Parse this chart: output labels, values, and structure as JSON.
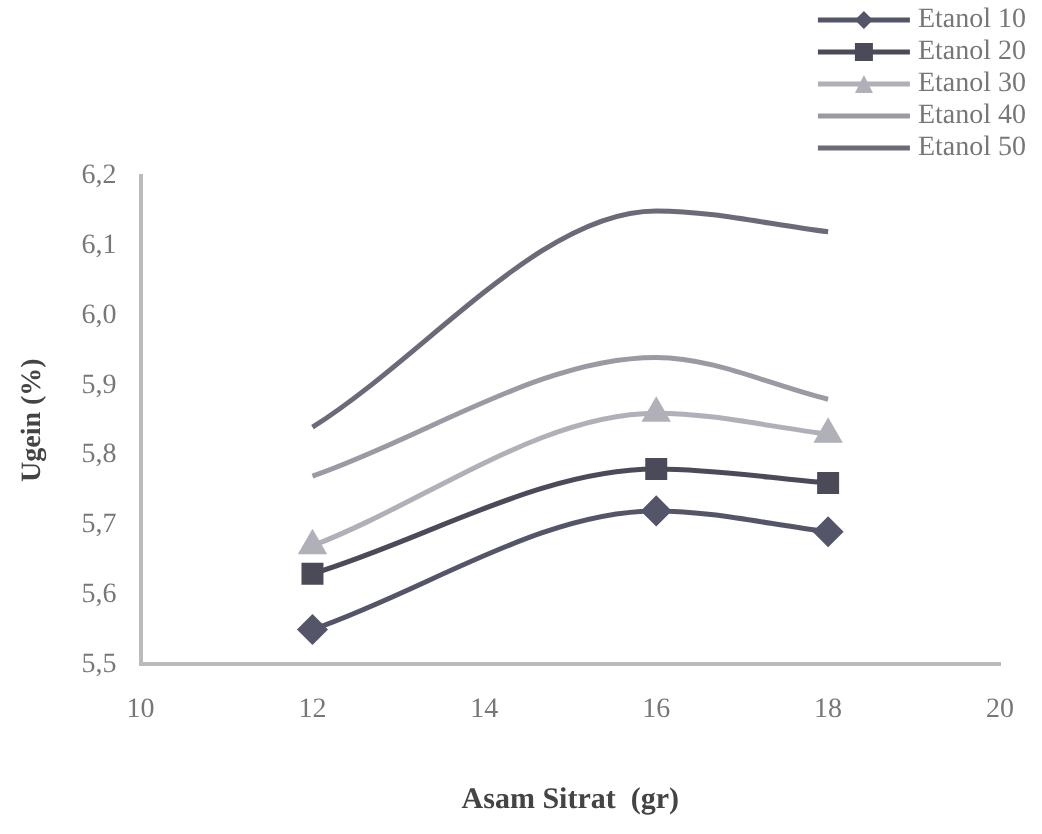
{
  "chart_data": {
    "type": "line",
    "xlabel": "Asam Sitrat  (gr)",
    "ylabel": "Ugein (%)",
    "x": [
      12,
      16,
      18
    ],
    "series": [
      {
        "name": "Etanol 10",
        "color": "#55556a",
        "values": [
          5.55,
          5.72,
          5.69
        ],
        "marker": "diamond"
      },
      {
        "name": "Etanol 20",
        "color": "#4a4a58",
        "values": [
          5.63,
          5.78,
          5.76
        ],
        "marker": "square"
      },
      {
        "name": "Etanol 30",
        "color": "#b0b0b8",
        "values": [
          5.67,
          5.86,
          5.83
        ],
        "marker": "triangle"
      },
      {
        "name": "Etanol 40",
        "color": "#9a9aa4",
        "values": [
          5.77,
          5.94,
          5.88
        ],
        "marker": "none"
      },
      {
        "name": "Etanol 50",
        "color": "#6a6a78",
        "values": [
          5.84,
          6.15,
          6.12
        ],
        "marker": "none"
      }
    ],
    "xlim": [
      10,
      20
    ],
    "xticks": [
      10,
      12,
      14,
      16,
      18,
      20
    ],
    "ylim": [
      5.5,
      6.2
    ],
    "yticks": [
      {
        "value": 5.5,
        "label": "5,5"
      },
      {
        "value": 5.6,
        "label": "5,6"
      },
      {
        "value": 5.7,
        "label": "5,7"
      },
      {
        "value": 5.8,
        "label": "5,8"
      },
      {
        "value": 5.9,
        "label": "5,9"
      },
      {
        "value": 6.0,
        "label": "6,0"
      },
      {
        "value": 6.1,
        "label": "6,1"
      },
      {
        "value": 6.2,
        "label": "6,2"
      }
    ],
    "grid": false,
    "legend": "top right"
  }
}
